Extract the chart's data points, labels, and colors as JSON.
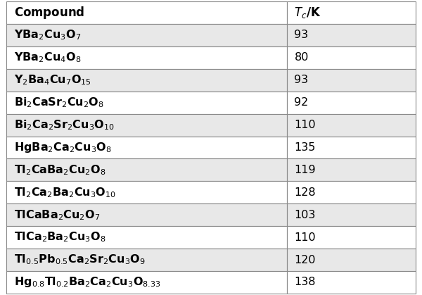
{
  "header_compound": "Compound",
  "header_tc": "$\\mathit{T}_c$/K",
  "rows": [
    [
      "YBa$_2$Cu$_3$O$_7$",
      "93"
    ],
    [
      "YBa$_2$Cu$_4$O$_8$",
      "80"
    ],
    [
      "Y$_2$Ba$_4$Cu$_7$O$_{15}$",
      "93"
    ],
    [
      "Bi$_2$CaSr$_2$Cu$_2$O$_8$",
      "92"
    ],
    [
      "Bi$_2$Ca$_2$Sr$_2$Cu$_3$O$_{10}$",
      "110"
    ],
    [
      "HgBa$_2$Ca$_2$Cu$_3$O$_8$",
      "135"
    ],
    [
      "Tl$_2$CaBa$_2$Cu$_2$O$_8$",
      "119"
    ],
    [
      "Tl$_2$Ca$_2$Ba$_2$Cu$_3$O$_{10}$",
      "128"
    ],
    [
      "TlCaBa$_2$Cu$_2$O$_7$",
      "103"
    ],
    [
      "TlCa$_2$Ba$_2$Cu$_3$O$_8$",
      "110"
    ],
    [
      "Tl$_{0.5}$Pb$_{0.5}$Ca$_2$Sr$_2$Cu$_3$O$_9$",
      "120"
    ],
    [
      "Hg$_{0.8}$Tl$_{0.2}$Ba$_2$Ca$_2$Cu$_3$O$_{8.33}$",
      "138"
    ]
  ],
  "col_split": 0.685,
  "header_bg": "#ffffff",
  "row_bg_odd": "#e8e8e8",
  "row_bg_even": "#ffffff",
  "border_color": "#888888",
  "text_color": "#000000",
  "font_size": 11.5,
  "header_font_size": 12,
  "fig_width": 6.0,
  "fig_height": 4.19,
  "dpi": 100,
  "outer_bg": "#ffffff"
}
